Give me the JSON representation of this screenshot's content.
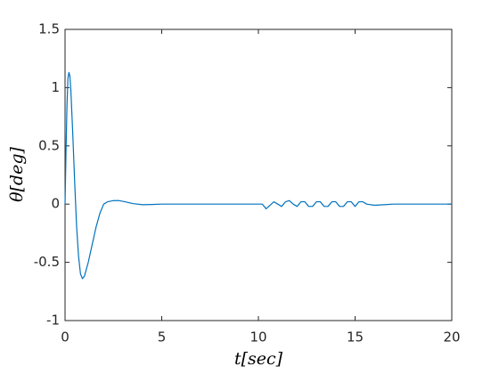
{
  "chart_data": {
    "type": "line",
    "xlabel": "t[sec]",
    "ylabel": "θ[deg]",
    "x": [
      0,
      0.05,
      0.1,
      0.15,
      0.2,
      0.25,
      0.3,
      0.4,
      0.5,
      0.6,
      0.7,
      0.8,
      0.9,
      1.0,
      1.2,
      1.4,
      1.6,
      1.8,
      2.0,
      2.2,
      2.5,
      2.8,
      3.1,
      3.5,
      4.0,
      4.5,
      5,
      10,
      10.2,
      10.4,
      10.6,
      10.8,
      11.0,
      11.2,
      11.4,
      11.6,
      11.8,
      12.0,
      12.2,
      12.4,
      12.6,
      12.8,
      13.0,
      13.2,
      13.4,
      13.6,
      13.8,
      14.0,
      14.2,
      14.4,
      14.6,
      14.8,
      15.0,
      15.2,
      15.4,
      15.6,
      16,
      16.5,
      17,
      20
    ],
    "series": [
      {
        "color": "#0072bd",
        "values": [
          0,
          0.45,
          0.85,
          1.08,
          1.13,
          1.1,
          0.98,
          0.6,
          0.18,
          -0.2,
          -0.45,
          -0.6,
          -0.64,
          -0.62,
          -0.5,
          -0.35,
          -0.2,
          -0.08,
          0,
          0.02,
          0.03,
          0.03,
          0.02,
          0.005,
          -0.005,
          -0.003,
          0,
          0,
          0,
          -0.04,
          -0.01,
          0.02,
          0,
          -0.02,
          0.02,
          0.03,
          0,
          -0.02,
          0.02,
          0.02,
          -0.02,
          -0.02,
          0.02,
          0.02,
          -0.02,
          -0.02,
          0.02,
          0.02,
          -0.02,
          -0.02,
          0.02,
          0.02,
          -0.02,
          0.02,
          0.02,
          0,
          -0.01,
          -0.005,
          0,
          0
        ]
      }
    ],
    "xlim": [
      0,
      20
    ],
    "xticks": [
      0,
      5,
      10,
      15,
      20
    ],
    "ylim": [
      -1,
      1.5
    ],
    "yticks": [
      -1,
      -0.5,
      0,
      0.5,
      1,
      1.5
    ],
    "grid": false
  }
}
